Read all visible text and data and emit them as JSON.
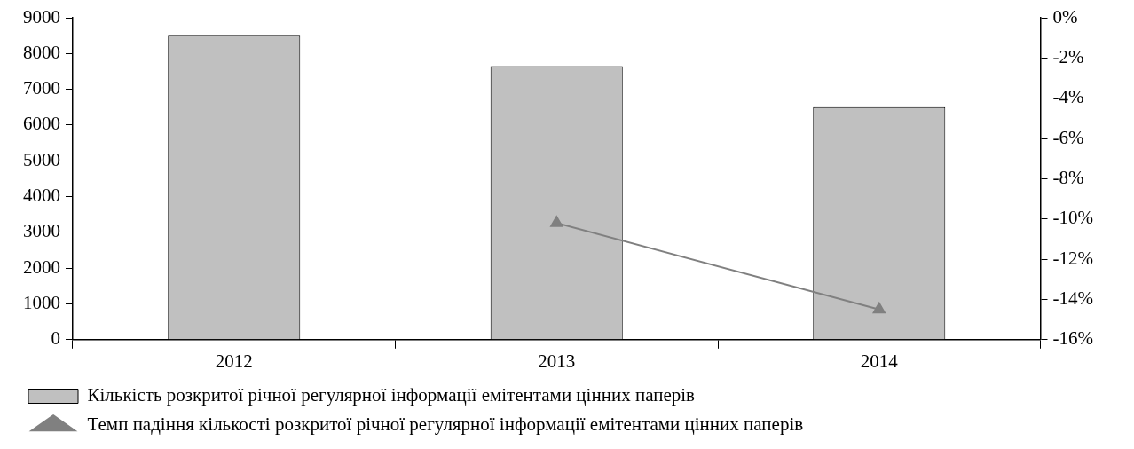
{
  "chart_data": {
    "type": "bar",
    "categories": [
      "2012",
      "2013",
      "2014"
    ],
    "series": [
      {
        "name": "Кількість розкритої річної регулярної інформації емітентами цінних паперів",
        "color": "#c0c0c0",
        "values": [
          8500,
          7650,
          6500
        ]
      },
      {
        "name": "Темп падіння кількості розкритої річної регулярної інформації емітентами цінних паперів",
        "type": "line",
        "axis": "y2",
        "color": "#808080",
        "values": [
          null,
          -10.2,
          -14.5
        ]
      }
    ],
    "ylim": [
      0,
      9000
    ],
    "yticks": [
      0,
      1000,
      2000,
      3000,
      4000,
      5000,
      6000,
      7000,
      8000,
      9000
    ],
    "y2lim": [
      -16,
      0
    ],
    "y2ticks": [
      {
        "value": -16,
        "label": "-16%"
      },
      {
        "value": -14,
        "label": "-14%"
      },
      {
        "value": -12,
        "label": "-12%"
      },
      {
        "value": -10,
        "label": "-10%"
      },
      {
        "value": -8,
        "label": "-8%"
      },
      {
        "value": -6,
        "label": "-6%"
      },
      {
        "value": -4,
        "label": "-4%"
      },
      {
        "value": -2,
        "label": "-2%"
      },
      {
        "value": 0,
        "label": "0%"
      }
    ],
    "grid": false,
    "legend": "bottom",
    "marker": "triangle",
    "line_style": "solid"
  }
}
